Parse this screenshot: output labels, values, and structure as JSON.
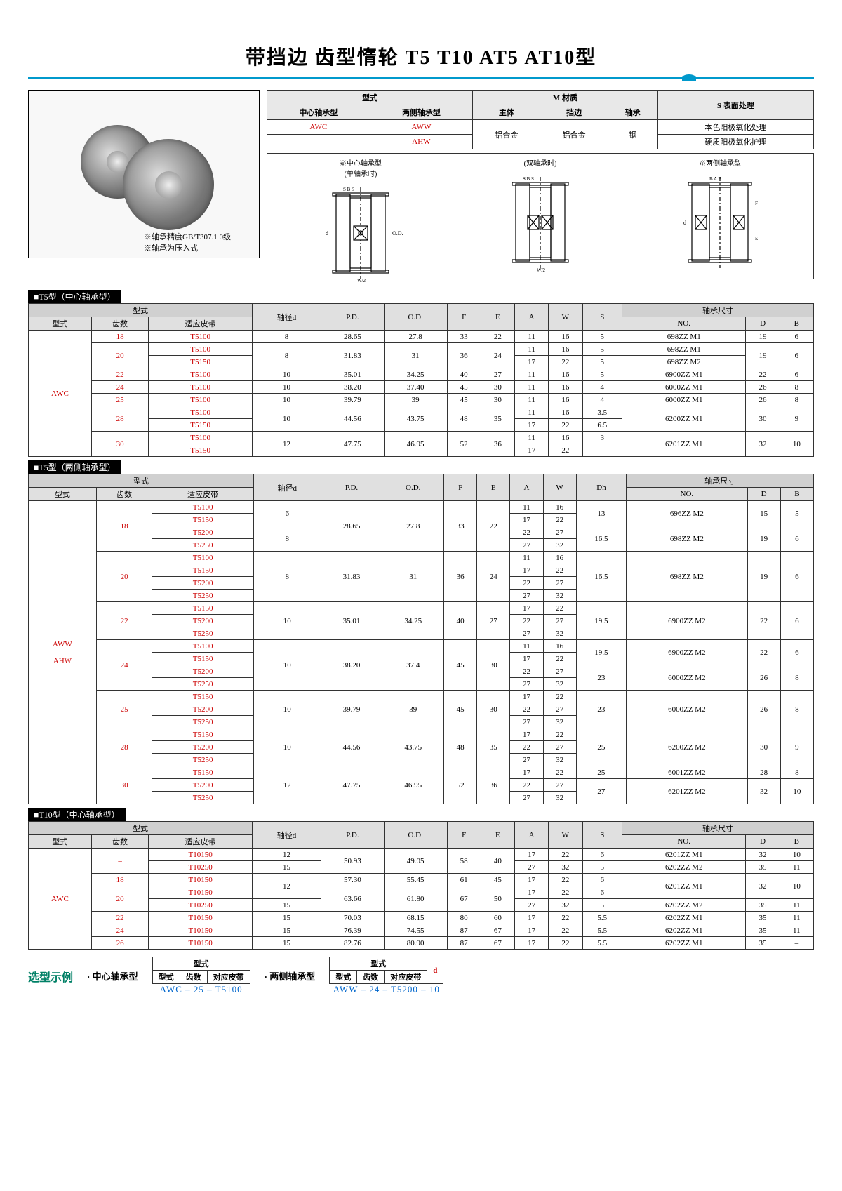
{
  "title": "带挡边 齿型惰轮 T5 T10 AT5 AT10型",
  "notes": {
    "line1": "※轴承精度GB/T307.1  0级",
    "line2": "※轴承为压入式"
  },
  "info_header": {
    "model": "型式",
    "center": "中心轴承型",
    "both": "两侧轴承型",
    "material": "M 材质",
    "body": "主体",
    "flange": "挡边",
    "bearing": "轴承",
    "surface": "S 表面处理",
    "awc": "AWC",
    "aww": "AWW",
    "dash": "–",
    "ahw": "AHW",
    "al1": "铝合金",
    "al2": "铝合金",
    "steel": "钢",
    "surf1": "本色阳极氧化处理",
    "surf2": "硬质阳极氧化护理"
  },
  "diagram_labels": {
    "d1a": "※中心轴承型",
    "d1b": "(单轴承时)",
    "d2": "(双轴承时)",
    "d3": "※两侧轴承型"
  },
  "sections": {
    "t5c": "■T5型（中心轴承型）",
    "t5b": "■T5型（两侧轴承型）",
    "t10c": "■T10型（中心轴承型）"
  },
  "columns": {
    "model_group": "型式",
    "type": "型式",
    "teeth": "齿数",
    "belt": "适应皮带",
    "shaft": "轴径d",
    "pd": "P.D.",
    "od": "O.D.",
    "f": "F",
    "e": "E",
    "a": "A",
    "w": "W",
    "s": "S",
    "dh": "Dh",
    "bearing_dim": "轴承尺寸",
    "no": "NO.",
    "d": "D",
    "b": "B"
  },
  "t5c": {
    "type": "AWC",
    "rows": [
      {
        "teeth": "18",
        "belt": "T5100",
        "d": "8",
        "pd": "28.65",
        "od": "27.8",
        "f": "33",
        "e": "22",
        "a": "11",
        "w": "16",
        "s": "5",
        "no": "698ZZ  M1",
        "D": "19",
        "B": "6"
      },
      {
        "teeth": "20",
        "belt": "T5100",
        "d": "8",
        "pd": "31.83",
        "od": "31",
        "f": "36",
        "e": "24",
        "a": "11",
        "w": "16",
        "s": "5",
        "no": "698ZZ  M1",
        "D": "19",
        "B": "6",
        "rowspan_teeth": 2,
        "rowspan_d": 2,
        "rowspan_pd": 2,
        "rowspan_od": 2,
        "rowspan_f": 2,
        "rowspan_e": 2,
        "rowspan_D": 2,
        "rowspan_B": 2
      },
      {
        "belt": "T5150",
        "a": "17",
        "w": "22",
        "s": "5",
        "no": "698ZZ  M2"
      },
      {
        "teeth": "22",
        "belt": "T5100",
        "d": "10",
        "pd": "35.01",
        "od": "34.25",
        "f": "40",
        "e": "27",
        "a": "11",
        "w": "16",
        "s": "5",
        "no": "6900ZZ M1",
        "D": "22",
        "B": "6"
      },
      {
        "teeth": "24",
        "belt": "T5100",
        "d": "10",
        "pd": "38.20",
        "od": "37.40",
        "f": "45",
        "e": "30",
        "a": "11",
        "w": "16",
        "s": "4",
        "no": "6000ZZ M1",
        "D": "26",
        "B": "8"
      },
      {
        "teeth": "25",
        "belt": "T5100",
        "d": "10",
        "pd": "39.79",
        "od": "39",
        "f": "45",
        "e": "30",
        "a": "11",
        "w": "16",
        "s": "4",
        "no": "6000ZZ M1",
        "D": "26",
        "B": "8"
      },
      {
        "teeth": "28",
        "belt": "T5100",
        "d": "10",
        "pd": "44.56",
        "od": "43.75",
        "f": "48",
        "e": "35",
        "a": "11",
        "w": "16",
        "s": "3.5",
        "no": "6200ZZ M1",
        "D": "30",
        "B": "9",
        "rowspan_teeth": 2,
        "rowspan_d": 2,
        "rowspan_pd": 2,
        "rowspan_od": 2,
        "rowspan_f": 2,
        "rowspan_e": 2,
        "rowspan_no": 2,
        "rowspan_D": 2,
        "rowspan_B": 2
      },
      {
        "belt": "T5150",
        "a": "17",
        "w": "22",
        "s": "6.5"
      },
      {
        "teeth": "30",
        "belt": "T5100",
        "d": "12",
        "pd": "47.75",
        "od": "46.95",
        "f": "52",
        "e": "36",
        "a": "11",
        "w": "16",
        "s": "3",
        "no": "6201ZZ M1",
        "D": "32",
        "B": "10",
        "rowspan_teeth": 2,
        "rowspan_d": 2,
        "rowspan_pd": 2,
        "rowspan_od": 2,
        "rowspan_f": 2,
        "rowspan_e": 2,
        "rowspan_no": 2,
        "rowspan_D": 2,
        "rowspan_B": 2
      },
      {
        "belt": "T5150",
        "a": "17",
        "w": "22",
        "s": "–"
      }
    ]
  },
  "t5b": {
    "types": "AWW\nAHW",
    "type1": "AWW",
    "type2": "AHW",
    "rows": [
      {
        "teeth": "18",
        "belt": "T5100",
        "d": "6",
        "pd": "28.65",
        "od": "27.8",
        "f": "33",
        "e": "22",
        "a": "11",
        "w": "16",
        "dh": "13",
        "no": "696ZZ  M2",
        "D": "15",
        "B": "5",
        "rs_teeth": 4,
        "rs_d": 2,
        "rs_pd": 4,
        "rs_od": 4,
        "rs_f": 4,
        "rs_e": 4,
        "rs_dh": 2,
        "rs_no": 2,
        "rs_D": 2,
        "rs_B": 2
      },
      {
        "belt": "T5150",
        "a": "17",
        "w": "22"
      },
      {
        "belt": "T5200",
        "d": "8",
        "a": "22",
        "w": "27",
        "dh": "16.5",
        "no": "698ZZ  M2",
        "D": "19",
        "B": "6",
        "rs_d": 2,
        "rs_dh": 2,
        "rs_no": 2,
        "rs_D": 2,
        "rs_B": 2
      },
      {
        "belt": "T5250",
        "a": "27",
        "w": "32"
      },
      {
        "teeth": "20",
        "belt": "T5100",
        "d": "8",
        "pd": "31.83",
        "od": "31",
        "f": "36",
        "e": "24",
        "a": "11",
        "w": "16",
        "dh": "16.5",
        "no": "698ZZ  M2",
        "D": "19",
        "B": "6",
        "rs_teeth": 4,
        "rs_d": 4,
        "rs_pd": 4,
        "rs_od": 4,
        "rs_f": 4,
        "rs_e": 4,
        "rs_dh": 4,
        "rs_no": 4,
        "rs_D": 4,
        "rs_B": 4
      },
      {
        "belt": "T5150",
        "a": "17",
        "w": "22"
      },
      {
        "belt": "T5200",
        "a": "22",
        "w": "27"
      },
      {
        "belt": "T5250",
        "a": "27",
        "w": "32"
      },
      {
        "teeth": "22",
        "belt": "T5150",
        "d": "10",
        "pd": "35.01",
        "od": "34.25",
        "f": "40",
        "e": "27",
        "a": "17",
        "w": "22",
        "dh": "19.5",
        "no": "6900ZZ M2",
        "D": "22",
        "B": "6",
        "rs_teeth": 3,
        "rs_d": 3,
        "rs_pd": 3,
        "rs_od": 3,
        "rs_f": 3,
        "rs_e": 3,
        "rs_dh": 3,
        "rs_no": 3,
        "rs_D": 3,
        "rs_B": 3
      },
      {
        "belt": "T5200",
        "a": "22",
        "w": "27"
      },
      {
        "belt": "T5250",
        "a": "27",
        "w": "32"
      },
      {
        "teeth": "24",
        "belt": "T5100",
        "d": "10",
        "pd": "38.20",
        "od": "37.4",
        "f": "45",
        "e": "30",
        "a": "11",
        "w": "16",
        "dh": "19.5",
        "no": "6900ZZ M2",
        "D": "22",
        "B": "6",
        "rs_teeth": 4,
        "rs_d": 4,
        "rs_pd": 4,
        "rs_od": 4,
        "rs_f": 4,
        "rs_e": 4,
        "rs_dh": 2,
        "rs_no": 2,
        "rs_D": 2,
        "rs_B": 2
      },
      {
        "belt": "T5150",
        "a": "17",
        "w": "22"
      },
      {
        "belt": "T5200",
        "a": "22",
        "w": "27",
        "dh": "23",
        "no": "6000ZZ M2",
        "D": "26",
        "B": "8",
        "rs_dh": 2,
        "rs_no": 2,
        "rs_D": 2,
        "rs_B": 2
      },
      {
        "belt": "T5250",
        "a": "27",
        "w": "32"
      },
      {
        "teeth": "25",
        "belt": "T5150",
        "d": "10",
        "pd": "39.79",
        "od": "39",
        "f": "45",
        "e": "30",
        "a": "17",
        "w": "22",
        "dh": "23",
        "no": "6000ZZ M2",
        "D": "26",
        "B": "8",
        "rs_teeth": 3,
        "rs_d": 3,
        "rs_pd": 3,
        "rs_od": 3,
        "rs_f": 3,
        "rs_e": 3,
        "rs_dh": 3,
        "rs_no": 3,
        "rs_D": 3,
        "rs_B": 3
      },
      {
        "belt": "T5200",
        "a": "22",
        "w": "27"
      },
      {
        "belt": "T5250",
        "a": "27",
        "w": "32"
      },
      {
        "teeth": "28",
        "belt": "T5150",
        "d": "10",
        "pd": "44.56",
        "od": "43.75",
        "f": "48",
        "e": "35",
        "a": "17",
        "w": "22",
        "dh": "25",
        "no": "6200ZZ M2",
        "D": "30",
        "B": "9",
        "rs_teeth": 3,
        "rs_d": 3,
        "rs_pd": 3,
        "rs_od": 3,
        "rs_f": 3,
        "rs_e": 3,
        "rs_dh": 3,
        "rs_no": 3,
        "rs_D": 3,
        "rs_B": 3
      },
      {
        "belt": "T5200",
        "a": "22",
        "w": "27"
      },
      {
        "belt": "T5250",
        "a": "27",
        "w": "32"
      },
      {
        "teeth": "30",
        "belt": "T5150",
        "d": "12",
        "pd": "47.75",
        "od": "46.95",
        "f": "52",
        "e": "36",
        "a": "17",
        "w": "22",
        "dh": "25",
        "no": "6001ZZ M2",
        "D": "28",
        "B": "8",
        "rs_teeth": 3,
        "rs_d": 3,
        "rs_pd": 3,
        "rs_od": 3,
        "rs_f": 3,
        "rs_e": 3
      },
      {
        "belt": "T5200",
        "a": "22",
        "w": "27",
        "dh": "27",
        "no": "6201ZZ M2",
        "D": "32",
        "B": "10",
        "rs_dh": 2,
        "rs_no": 2,
        "rs_D": 2,
        "rs_B": 2
      },
      {
        "belt": "T5250",
        "a": "27",
        "w": "32"
      }
    ]
  },
  "t10c": {
    "type": "AWC",
    "rows": [
      {
        "teeth": "–",
        "belt": "T10150",
        "d": "12",
        "pd": "50.93",
        "od": "49.05",
        "f": "58",
        "e": "40",
        "a": "17",
        "w": "22",
        "s": "6",
        "no": "6201ZZ M1",
        "D": "32",
        "B": "10",
        "rs_teeth": 2,
        "rs_pd": 2,
        "rs_od": 2,
        "rs_f": 2,
        "rs_e": 2
      },
      {
        "belt": "T10250",
        "d": "15",
        "a": "27",
        "w": "32",
        "s": "5",
        "no": "6202ZZ M2",
        "D": "35",
        "B": "11"
      },
      {
        "teeth": "18",
        "belt": "T10150",
        "d": "12",
        "pd": "57.30",
        "od": "55.45",
        "f": "61",
        "e": "45",
        "a": "17",
        "w": "22",
        "s": "6",
        "no": "6201ZZ M1",
        "D": "32",
        "B": "10",
        "rs_d": 2,
        "rs_no": 2,
        "rs_D": 2,
        "rs_B": 2
      },
      {
        "teeth": "20",
        "belt": "T10150",
        "pd": "63.66",
        "od": "61.80",
        "f": "67",
        "e": "50",
        "a": "17",
        "w": "22",
        "s": "6",
        "rs_teeth": 2,
        "rs_pd": 2,
        "rs_od": 2,
        "rs_f": 2,
        "rs_e": 2
      },
      {
        "belt": "T10250",
        "d": "15",
        "a": "27",
        "w": "32",
        "s": "5",
        "no": "6202ZZ M2",
        "D": "35",
        "B": "11"
      },
      {
        "teeth": "22",
        "belt": "T10150",
        "d": "15",
        "pd": "70.03",
        "od": "68.15",
        "f": "80",
        "e": "60",
        "a": "17",
        "w": "22",
        "s": "5.5",
        "no": "6202ZZ M1",
        "D": "35",
        "B": "11"
      },
      {
        "teeth": "24",
        "belt": "T10150",
        "d": "15",
        "pd": "76.39",
        "od": "74.55",
        "f": "87",
        "e": "67",
        "a": "17",
        "w": "22",
        "s": "5.5",
        "no": "6202ZZ M1",
        "D": "35",
        "B": "11"
      },
      {
        "teeth": "26",
        "belt": "T10150",
        "d": "15",
        "pd": "82.76",
        "od": "80.90",
        "f": "87",
        "e": "67",
        "a": "17",
        "w": "22",
        "s": "5.5",
        "no": "6202ZZ M1",
        "D": "35",
        "B": "–"
      }
    ]
  },
  "example": {
    "label": "选型示例",
    "center_label": "· 中心轴承型",
    "both_label": "· 两侧轴承型",
    "h_model": "型式",
    "h_type": "型式",
    "h_teeth": "齿数",
    "h_belt": "对应皮带",
    "h_d": "d",
    "ex1": "AWC  –  25  –  T5100",
    "ex2": "AWW  –  24  –  T5200 –  10"
  }
}
